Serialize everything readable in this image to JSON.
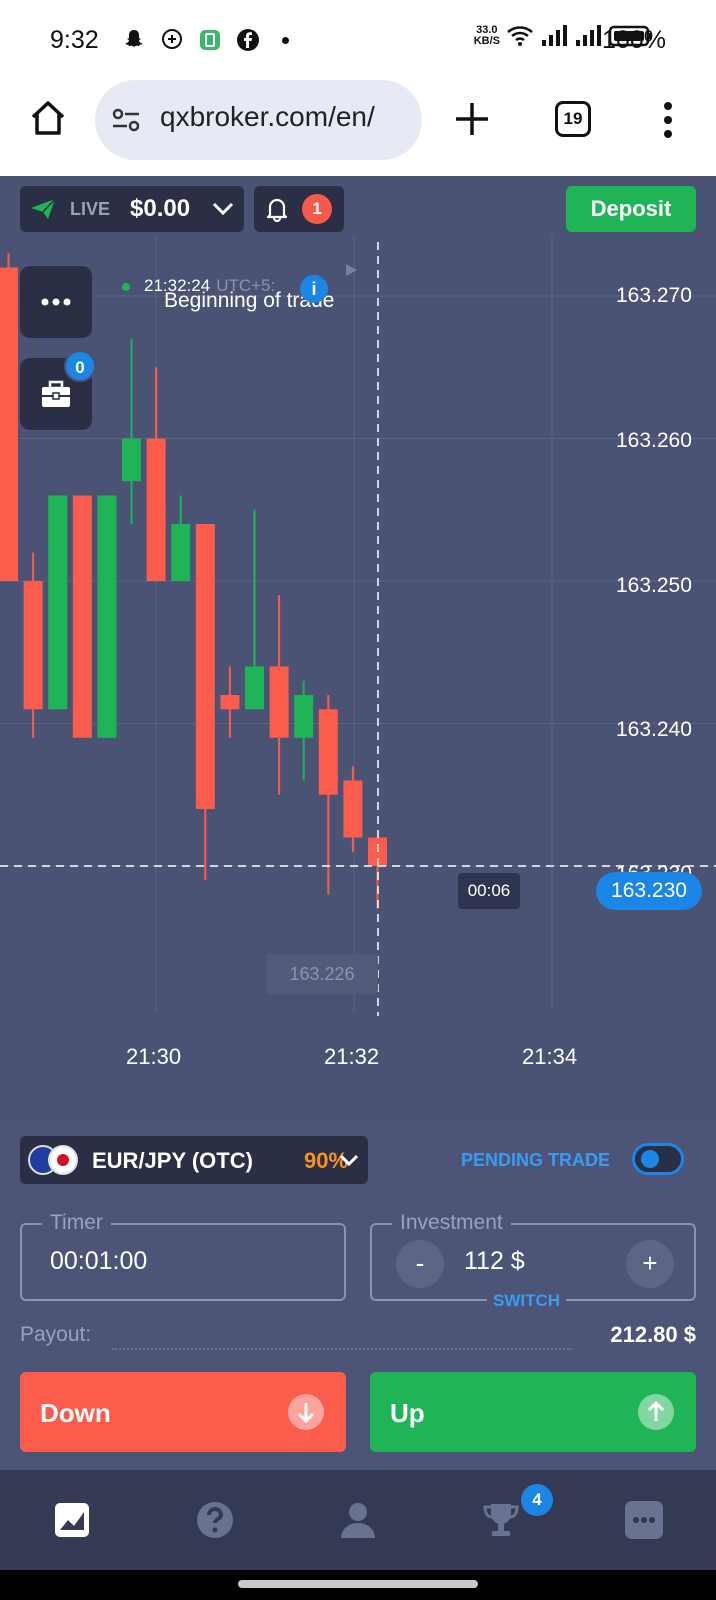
{
  "status_bar": {
    "time": "9:32",
    "net_speed_value": "33.0",
    "net_speed_unit": "KB/S",
    "battery": "100%"
  },
  "browser": {
    "url": "qxbroker.com/en/",
    "tab_count": "19"
  },
  "account": {
    "mode": "LIVE",
    "balance": "$0.00",
    "notifications": "1",
    "deposit_label": "Deposit",
    "portfolio_count": "0"
  },
  "chart": {
    "trade_start_time": "21:32:24",
    "trade_start_tz": "UTC+5:",
    "trade_start_label": "Beginning of trade",
    "info_badge": "i",
    "price_ticks": [
      "163.270",
      "163.260",
      "163.250",
      "163.240",
      "163.230"
    ],
    "time_ticks": [
      "21:30",
      "21:32",
      "21:34"
    ],
    "current_price": "163.230",
    "countdown": "00:06",
    "low_price": "163.226",
    "colors": {
      "up": "#1fb557",
      "down": "#fb5c4c",
      "accent": "#1b86e6"
    }
  },
  "chart_data": {
    "type": "candlestick",
    "series": [
      {
        "open": 163.272,
        "high": 163.273,
        "low": 163.25,
        "close": 163.25
      },
      {
        "open": 163.25,
        "high": 163.252,
        "low": 163.239,
        "close": 163.241
      },
      {
        "open": 163.241,
        "high": 163.256,
        "low": 163.241,
        "close": 163.256
      },
      {
        "open": 163.256,
        "high": 163.256,
        "low": 163.239,
        "close": 163.239
      },
      {
        "open": 163.239,
        "high": 163.256,
        "low": 163.239,
        "close": 163.256
      },
      {
        "open": 163.257,
        "high": 163.267,
        "low": 163.254,
        "close": 163.26
      },
      {
        "open": 163.26,
        "high": 163.265,
        "low": 163.25,
        "close": 163.25
      },
      {
        "open": 163.25,
        "high": 163.256,
        "low": 163.25,
        "close": 163.254
      },
      {
        "open": 163.254,
        "high": 163.254,
        "low": 163.229,
        "close": 163.234
      },
      {
        "open": 163.242,
        "high": 163.244,
        "low": 163.239,
        "close": 163.241
      },
      {
        "open": 163.241,
        "high": 163.255,
        "low": 163.241,
        "close": 163.244
      },
      {
        "open": 163.244,
        "high": 163.249,
        "low": 163.235,
        "close": 163.239
      },
      {
        "open": 163.239,
        "high": 163.243,
        "low": 163.236,
        "close": 163.242
      },
      {
        "open": 163.241,
        "high": 163.242,
        "low": 163.228,
        "close": 163.235
      },
      {
        "open": 163.236,
        "high": 163.237,
        "low": 163.231,
        "close": 163.232
      },
      {
        "open": 163.232,
        "high": 163.232,
        "low": 163.227,
        "close": 163.23
      }
    ],
    "ylim": [
      163.225,
      163.274
    ]
  },
  "trade": {
    "asset": "EUR/JPY (OTC)",
    "payout_pct": "90%",
    "pending_label": "PENDING TRADE",
    "timer_label": "Timer",
    "timer_value": "00:01:00",
    "investment_label": "Investment",
    "investment_value": "112 $",
    "minus": "-",
    "plus": "+",
    "switch_label": "SWITCH",
    "payout_label": "Payout:",
    "payout_value": "212.80 $",
    "down_label": "Down",
    "up_label": "Up"
  },
  "bottom_nav": {
    "tournaments_badge": "4"
  }
}
